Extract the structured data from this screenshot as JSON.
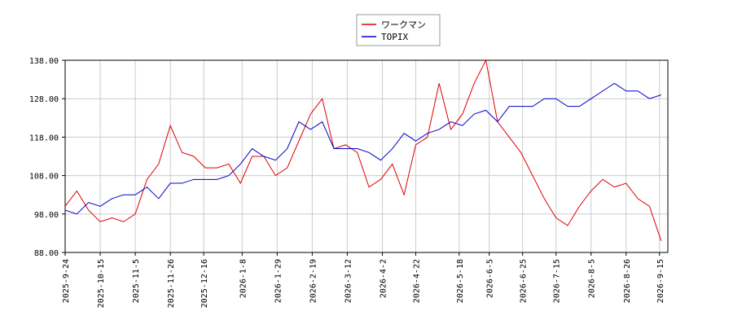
{
  "chart_data": {
    "type": "line",
    "x": [
      "2025-9-24",
      "2025-10-1",
      "2025-10-8",
      "2025-10-15",
      "2025-10-22",
      "2025-10-29",
      "2025-11-5",
      "2025-11-12",
      "2025-11-19",
      "2025-11-26",
      "2025-12-3",
      "2025-12-10",
      "2025-12-17",
      "2025-12-24",
      "2025-12-31",
      "2026-1-7",
      "2026-1-14",
      "2026-1-21",
      "2026-1-28",
      "2026-2-4",
      "2026-2-11",
      "2026-2-18",
      "2026-2-25",
      "2026-3-4",
      "2026-3-11",
      "2026-3-18",
      "2026-3-25",
      "2026-4-1",
      "2026-4-8",
      "2026-4-15",
      "2026-4-22",
      "2026-4-29",
      "2026-5-6",
      "2026-5-13",
      "2026-5-20",
      "2026-5-27",
      "2026-6-3",
      "2026-6-10",
      "2026-6-17",
      "2026-6-24",
      "2026-7-1",
      "2026-7-8",
      "2026-7-15",
      "2026-7-22",
      "2026-7-29",
      "2026-8-5",
      "2026-8-12",
      "2026-8-19",
      "2026-8-26",
      "2026-9-2",
      "2026-9-9",
      "2026-9-16"
    ],
    "series": [
      {
        "name": "ワークマン",
        "color": "#dd0000",
        "values": [
          100,
          104,
          99,
          96,
          97,
          96,
          98,
          107,
          111,
          121,
          114,
          113,
          110,
          110,
          111,
          106,
          113,
          113,
          108,
          110,
          117,
          124,
          128,
          115,
          116,
          114,
          105,
          107,
          111,
          103,
          116,
          118,
          132,
          120,
          124,
          132,
          138,
          122,
          118,
          114,
          108,
          102,
          97,
          95,
          100,
          104,
          107,
          105,
          106,
          102,
          100,
          91
        ]
      },
      {
        "name": "TOPIX",
        "color": "#0000cc",
        "values": [
          99,
          98,
          101,
          100,
          102,
          103,
          103,
          105,
          102,
          106,
          106,
          107,
          107,
          107,
          108,
          111,
          115,
          113,
          112,
          115,
          122,
          120,
          122,
          115,
          115,
          115,
          114,
          112,
          115,
          119,
          117,
          119,
          120,
          122,
          121,
          124,
          125,
          122,
          126,
          126,
          126,
          128,
          128,
          126,
          126,
          128,
          130,
          132,
          130,
          130,
          128,
          129
        ]
      }
    ],
    "xlim": [
      "2025-9-24",
      "2026-9-20"
    ],
    "xticks": [
      "2025-9-24",
      "2025-10-15",
      "2025-11-5",
      "2025-11-26",
      "2025-12-16",
      "2026-1-8",
      "2026-1-29",
      "2026-2-19",
      "2026-3-12",
      "2026-4-2",
      "2026-4-22",
      "2026-5-18",
      "2026-6-5",
      "2026-6-25",
      "2026-7-15",
      "2026-8-5",
      "2026-8-26",
      "2026-9-15"
    ],
    "ylim": [
      88,
      138
    ],
    "yticks": [
      {
        "value": 88,
        "label": "88.00"
      },
      {
        "value": 98,
        "label": "98.00"
      },
      {
        "value": 108,
        "label": "108.00"
      },
      {
        "value": 118,
        "label": "118.00"
      },
      {
        "value": 128,
        "label": "128.00"
      },
      {
        "value": 138,
        "label": "138.00"
      }
    ],
    "grid": true
  }
}
